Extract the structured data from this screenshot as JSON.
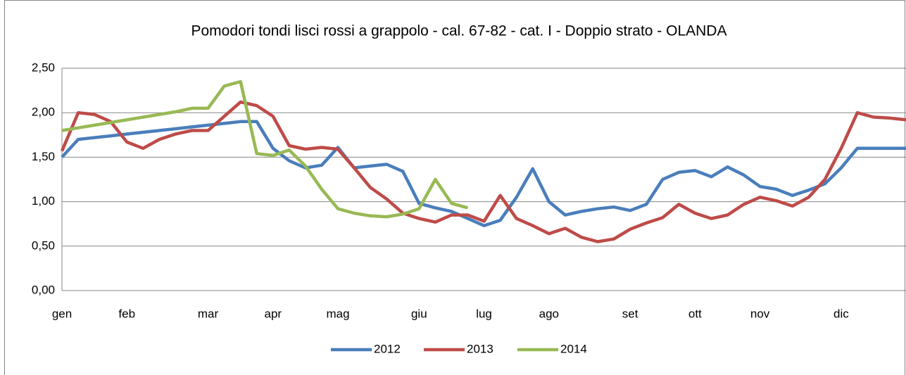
{
  "chart_data": {
    "type": "line",
    "title": "Pomodori tondi lisci rossi a grappolo - cal. 67-82 -  cat. I - Doppio strato - OLANDA",
    "categories": [
      "gen",
      null,
      null,
      null,
      "feb",
      null,
      null,
      null,
      null,
      "mar",
      null,
      null,
      null,
      "apr",
      null,
      null,
      null,
      "mag",
      null,
      null,
      null,
      null,
      "giu",
      null,
      null,
      null,
      "lug",
      null,
      null,
      null,
      "ago",
      null,
      null,
      null,
      null,
      "set",
      null,
      null,
      null,
      "ott",
      null,
      null,
      null,
      "nov",
      null,
      null,
      null,
      null,
      "dic",
      null,
      null,
      null,
      null
    ],
    "series": [
      {
        "name": "2012",
        "color": "#4a7ebb",
        "values": [
          1.5,
          1.7,
          1.72,
          1.74,
          1.76,
          1.78,
          1.8,
          1.82,
          1.84,
          1.86,
          1.88,
          1.9,
          1.9,
          1.6,
          1.46,
          1.38,
          1.41,
          1.61,
          1.38,
          1.4,
          1.42,
          1.34,
          0.98,
          0.93,
          0.89,
          0.81,
          0.73,
          0.79,
          1.05,
          1.37,
          1.0,
          0.85,
          0.89,
          0.92,
          0.94,
          0.9,
          0.97,
          1.25,
          1.33,
          1.35,
          1.28,
          1.39,
          1.3,
          1.17,
          1.14,
          1.07,
          1.13,
          1.2,
          1.38,
          1.6,
          1.6,
          1.6,
          1.6
        ]
      },
      {
        "name": "2013",
        "color": "#be4b48",
        "values": [
          1.57,
          2.0,
          1.98,
          1.9,
          1.67,
          1.6,
          1.7,
          1.76,
          1.8,
          1.8,
          1.96,
          2.12,
          2.08,
          1.96,
          1.63,
          1.59,
          1.61,
          1.59,
          1.38,
          1.16,
          1.03,
          0.87,
          0.81,
          0.77,
          0.85,
          0.85,
          0.78,
          1.07,
          0.81,
          0.73,
          0.64,
          0.7,
          0.6,
          0.55,
          0.58,
          0.69,
          0.76,
          0.82,
          0.97,
          0.87,
          0.81,
          0.85,
          0.97,
          1.05,
          1.01,
          0.95,
          1.05,
          1.25,
          1.6,
          2.0,
          1.95,
          1.94,
          1.92
        ]
      },
      {
        "name": "2014",
        "color": "#98b954",
        "values": [
          1.8,
          1.83,
          1.86,
          1.89,
          1.92,
          1.95,
          1.98,
          2.01,
          2.05,
          2.05,
          2.3,
          2.35,
          1.54,
          1.52,
          1.58,
          1.4,
          1.14,
          0.92,
          0.87,
          0.84,
          0.83,
          0.86,
          0.92,
          1.25,
          0.98,
          0.93,
          null,
          null,
          null,
          null,
          null,
          null,
          null,
          null,
          null,
          null,
          null,
          null,
          null,
          null,
          null,
          null,
          null,
          null,
          null,
          null,
          null,
          null,
          null,
          null,
          null,
          null,
          null
        ]
      }
    ],
    "ylim": [
      0,
      2.5
    ],
    "yticks": [
      {
        "value": 0,
        "label": "0,00"
      },
      {
        "value": 0.5,
        "label": "0,50"
      },
      {
        "value": 1,
        "label": "1,00"
      },
      {
        "value": 1.5,
        "label": "1,50"
      },
      {
        "value": 2,
        "label": "2,00"
      },
      {
        "value": 2.5,
        "label": "2,50"
      }
    ],
    "grid": true
  }
}
